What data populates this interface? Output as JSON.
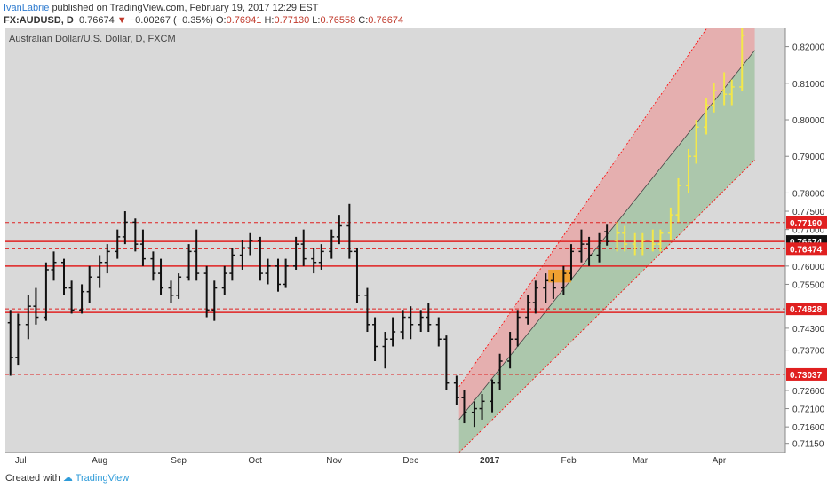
{
  "header": {
    "author": "IvanLabrie",
    "published": "published on TradingView.com, February 19, 2017 12:29 EST",
    "symbol": "FX:AUDUSD, D",
    "last": "0.76674",
    "change": "−0.00267 (−0.35%)",
    "open_label": "O:",
    "open": "0.76941",
    "high_label": "H:",
    "high": "0.77130",
    "low_label": "L:",
    "low": "0.76558",
    "close_label": "C:",
    "close": "0.76674"
  },
  "footer": {
    "created_with": "Created with",
    "brand": "TradingView"
  },
  "colors": {
    "background": "#d9d9d9",
    "bar": "#111111",
    "support_resistance": "#e02020",
    "channel_upper_fill": "#e8a0a0",
    "channel_lower_fill": "#9cc09c",
    "projection": "#f3e84a",
    "highlight": "#f39c12",
    "marker_green": "#5fbf3f"
  },
  "chart_data": {
    "type": "ohlc",
    "title": "Australian Dollar/U.S. Dollar, D, FXCM",
    "x_tick_labels": [
      "Jul",
      "Aug",
      "Sep",
      "Oct",
      "Nov",
      "Dec",
      "2017",
      "Feb",
      "Mar",
      "Apr"
    ],
    "y_tick_labels": [
      "0.82000",
      "0.81000",
      "0.80000",
      "0.79000",
      "0.78000",
      "0.77500",
      "0.77000",
      "0.76000",
      "0.75500",
      "0.74300",
      "0.73700",
      "0.72600",
      "0.72100",
      "0.71600",
      "0.71150"
    ],
    "ylim": [
      0.709,
      0.825
    ],
    "price_labels": [
      {
        "value": 0.7719,
        "text": "0.77190",
        "style": "red"
      },
      {
        "value": 0.76674,
        "text": "0.76674",
        "style": "black"
      },
      {
        "value": 0.76474,
        "text": "0.76474",
        "style": "red"
      },
      {
        "value": 0.74828,
        "text": "0.74828",
        "style": "red"
      },
      {
        "value": 0.73037,
        "text": "0.73037",
        "style": "red"
      }
    ],
    "horizontal_lines": [
      {
        "value": 0.7719,
        "style": "dashed"
      },
      {
        "value": 0.76674,
        "style": "solid"
      },
      {
        "value": 0.76474,
        "style": "dashed"
      },
      {
        "value": 0.76,
        "style": "solid"
      },
      {
        "value": 0.74828,
        "style": "dashed"
      },
      {
        "value": 0.7473,
        "style": "solid"
      },
      {
        "value": 0.73037,
        "style": "dashed"
      }
    ],
    "channel": {
      "start_date": "2016-12-20",
      "end_date": "2017-04-15",
      "lower_start": 0.709,
      "mid_start": 0.718,
      "upper_start": 0.727,
      "lower_end": 0.789,
      "mid_end": 0.819,
      "upper_end": 0.844
    },
    "ohlc_series": [
      [
        "2016-06-27",
        0.7445,
        0.748,
        0.73,
        0.735
      ],
      [
        "2016-06-30",
        0.735,
        0.747,
        0.733,
        0.744
      ],
      [
        "2016-07-04",
        0.744,
        0.752,
        0.74,
        0.749
      ],
      [
        "2016-07-07",
        0.749,
        0.754,
        0.744,
        0.746
      ],
      [
        "2016-07-11",
        0.746,
        0.761,
        0.745,
        0.759
      ],
      [
        "2016-07-14",
        0.759,
        0.764,
        0.756,
        0.761
      ],
      [
        "2016-07-18",
        0.761,
        0.762,
        0.752,
        0.754
      ],
      [
        "2016-07-21",
        0.754,
        0.756,
        0.747,
        0.748
      ],
      [
        "2016-07-25",
        0.748,
        0.755,
        0.747,
        0.753
      ],
      [
        "2016-07-28",
        0.753,
        0.76,
        0.75,
        0.757
      ],
      [
        "2016-08-01",
        0.757,
        0.763,
        0.754,
        0.761
      ],
      [
        "2016-08-04",
        0.761,
        0.766,
        0.758,
        0.764
      ],
      [
        "2016-08-08",
        0.764,
        0.77,
        0.762,
        0.768
      ],
      [
        "2016-08-11",
        0.768,
        0.775,
        0.766,
        0.772
      ],
      [
        "2016-08-15",
        0.772,
        0.773,
        0.764,
        0.766
      ],
      [
        "2016-08-18",
        0.766,
        0.77,
        0.76,
        0.762
      ],
      [
        "2016-08-22",
        0.762,
        0.764,
        0.756,
        0.758
      ],
      [
        "2016-08-25",
        0.758,
        0.762,
        0.752,
        0.754
      ],
      [
        "2016-08-29",
        0.754,
        0.756,
        0.75,
        0.752
      ],
      [
        "2016-09-01",
        0.752,
        0.758,
        0.751,
        0.757
      ],
      [
        "2016-09-05",
        0.757,
        0.766,
        0.756,
        0.764
      ],
      [
        "2016-09-08",
        0.764,
        0.77,
        0.756,
        0.758
      ],
      [
        "2016-09-12",
        0.758,
        0.76,
        0.746,
        0.748
      ],
      [
        "2016-09-15",
        0.748,
        0.756,
        0.745,
        0.754
      ],
      [
        "2016-09-19",
        0.754,
        0.76,
        0.752,
        0.758
      ],
      [
        "2016-09-22",
        0.758,
        0.765,
        0.756,
        0.763
      ],
      [
        "2016-09-26",
        0.763,
        0.767,
        0.759,
        0.765
      ],
      [
        "2016-09-29",
        0.765,
        0.769,
        0.763,
        0.767
      ],
      [
        "2016-10-03",
        0.767,
        0.768,
        0.756,
        0.758
      ],
      [
        "2016-10-06",
        0.758,
        0.762,
        0.755,
        0.76
      ],
      [
        "2016-10-10",
        0.76,
        0.762,
        0.753,
        0.755
      ],
      [
        "2016-10-13",
        0.755,
        0.762,
        0.754,
        0.76
      ],
      [
        "2016-10-17",
        0.76,
        0.768,
        0.759,
        0.766
      ],
      [
        "2016-10-20",
        0.766,
        0.77,
        0.76,
        0.762
      ],
      [
        "2016-10-24",
        0.762,
        0.765,
        0.758,
        0.761
      ],
      [
        "2016-10-27",
        0.761,
        0.766,
        0.759,
        0.764
      ],
      [
        "2016-10-31",
        0.764,
        0.77,
        0.762,
        0.768
      ],
      [
        "2016-11-03",
        0.768,
        0.774,
        0.766,
        0.771
      ],
      [
        "2016-11-07",
        0.771,
        0.777,
        0.762,
        0.764
      ],
      [
        "2016-11-10",
        0.764,
        0.765,
        0.75,
        0.752
      ],
      [
        "2016-11-14",
        0.752,
        0.754,
        0.742,
        0.744
      ],
      [
        "2016-11-17",
        0.744,
        0.746,
        0.734,
        0.738
      ],
      [
        "2016-11-21",
        0.738,
        0.742,
        0.732,
        0.74
      ],
      [
        "2016-11-24",
        0.74,
        0.746,
        0.738,
        0.742
      ],
      [
        "2016-11-28",
        0.742,
        0.748,
        0.74,
        0.746
      ],
      [
        "2016-12-01",
        0.746,
        0.749,
        0.74,
        0.744
      ],
      [
        "2016-12-05",
        0.744,
        0.748,
        0.742,
        0.746
      ],
      [
        "2016-12-08",
        0.746,
        0.75,
        0.742,
        0.744
      ],
      [
        "2016-12-12",
        0.744,
        0.746,
        0.738,
        0.74
      ],
      [
        "2016-12-15",
        0.74,
        0.741,
        0.726,
        0.728
      ],
      [
        "2016-12-19",
        0.728,
        0.73,
        0.722,
        0.724
      ],
      [
        "2016-12-22",
        0.724,
        0.726,
        0.717,
        0.72
      ],
      [
        "2016-12-26",
        0.72,
        0.723,
        0.716,
        0.721
      ],
      [
        "2016-12-29",
        0.721,
        0.725,
        0.718,
        0.723
      ],
      [
        "2017-01-02",
        0.723,
        0.729,
        0.72,
        0.728
      ],
      [
        "2017-01-05",
        0.728,
        0.736,
        0.726,
        0.734
      ],
      [
        "2017-01-09",
        0.734,
        0.742,
        0.732,
        0.74
      ],
      [
        "2017-01-12",
        0.74,
        0.748,
        0.738,
        0.746
      ],
      [
        "2017-01-16",
        0.746,
        0.752,
        0.744,
        0.75
      ],
      [
        "2017-01-19",
        0.75,
        0.756,
        0.747,
        0.754
      ],
      [
        "2017-01-23",
        0.754,
        0.758,
        0.75,
        0.756
      ],
      [
        "2017-01-26",
        0.756,
        0.758,
        0.751,
        0.754
      ],
      [
        "2017-01-30",
        0.754,
        0.76,
        0.752,
        0.758
      ],
      [
        "2017-02-02",
        0.758,
        0.766,
        0.756,
        0.764
      ],
      [
        "2017-02-06",
        0.764,
        0.77,
        0.761,
        0.766
      ],
      [
        "2017-02-09",
        0.766,
        0.768,
        0.76,
        0.763
      ],
      [
        "2017-02-13",
        0.763,
        0.769,
        0.761,
        0.767
      ],
      [
        "2017-02-16",
        0.7694,
        0.7713,
        0.7656,
        0.7667
      ]
    ],
    "projection_series": [
      [
        "2017-02-20",
        0.767,
        0.772,
        0.764,
        0.769
      ],
      [
        "2017-02-23",
        0.769,
        0.771,
        0.764,
        0.766
      ],
      [
        "2017-02-27",
        0.766,
        0.769,
        0.763,
        0.765
      ],
      [
        "2017-03-02",
        0.765,
        0.769,
        0.763,
        0.767
      ],
      [
        "2017-03-06",
        0.767,
        0.77,
        0.764,
        0.766
      ],
      [
        "2017-03-09",
        0.766,
        0.77,
        0.764,
        0.769
      ],
      [
        "2017-03-13",
        0.769,
        0.776,
        0.767,
        0.774
      ],
      [
        "2017-03-16",
        0.774,
        0.784,
        0.772,
        0.782
      ],
      [
        "2017-03-20",
        0.782,
        0.792,
        0.78,
        0.79
      ],
      [
        "2017-03-23",
        0.79,
        0.8,
        0.788,
        0.798
      ],
      [
        "2017-03-27",
        0.798,
        0.806,
        0.796,
        0.804
      ],
      [
        "2017-03-30",
        0.804,
        0.81,
        0.802,
        0.808
      ],
      [
        "2017-04-03",
        0.808,
        0.813,
        0.804,
        0.807
      ],
      [
        "2017-04-06",
        0.807,
        0.811,
        0.804,
        0.809
      ],
      [
        "2017-04-10",
        0.809,
        0.825,
        0.808,
        0.823
      ]
    ],
    "highlight_band": {
      "start_date": "2017-01-24",
      "end_date": "2017-02-02",
      "low": 0.7555,
      "high": 0.759
    }
  }
}
